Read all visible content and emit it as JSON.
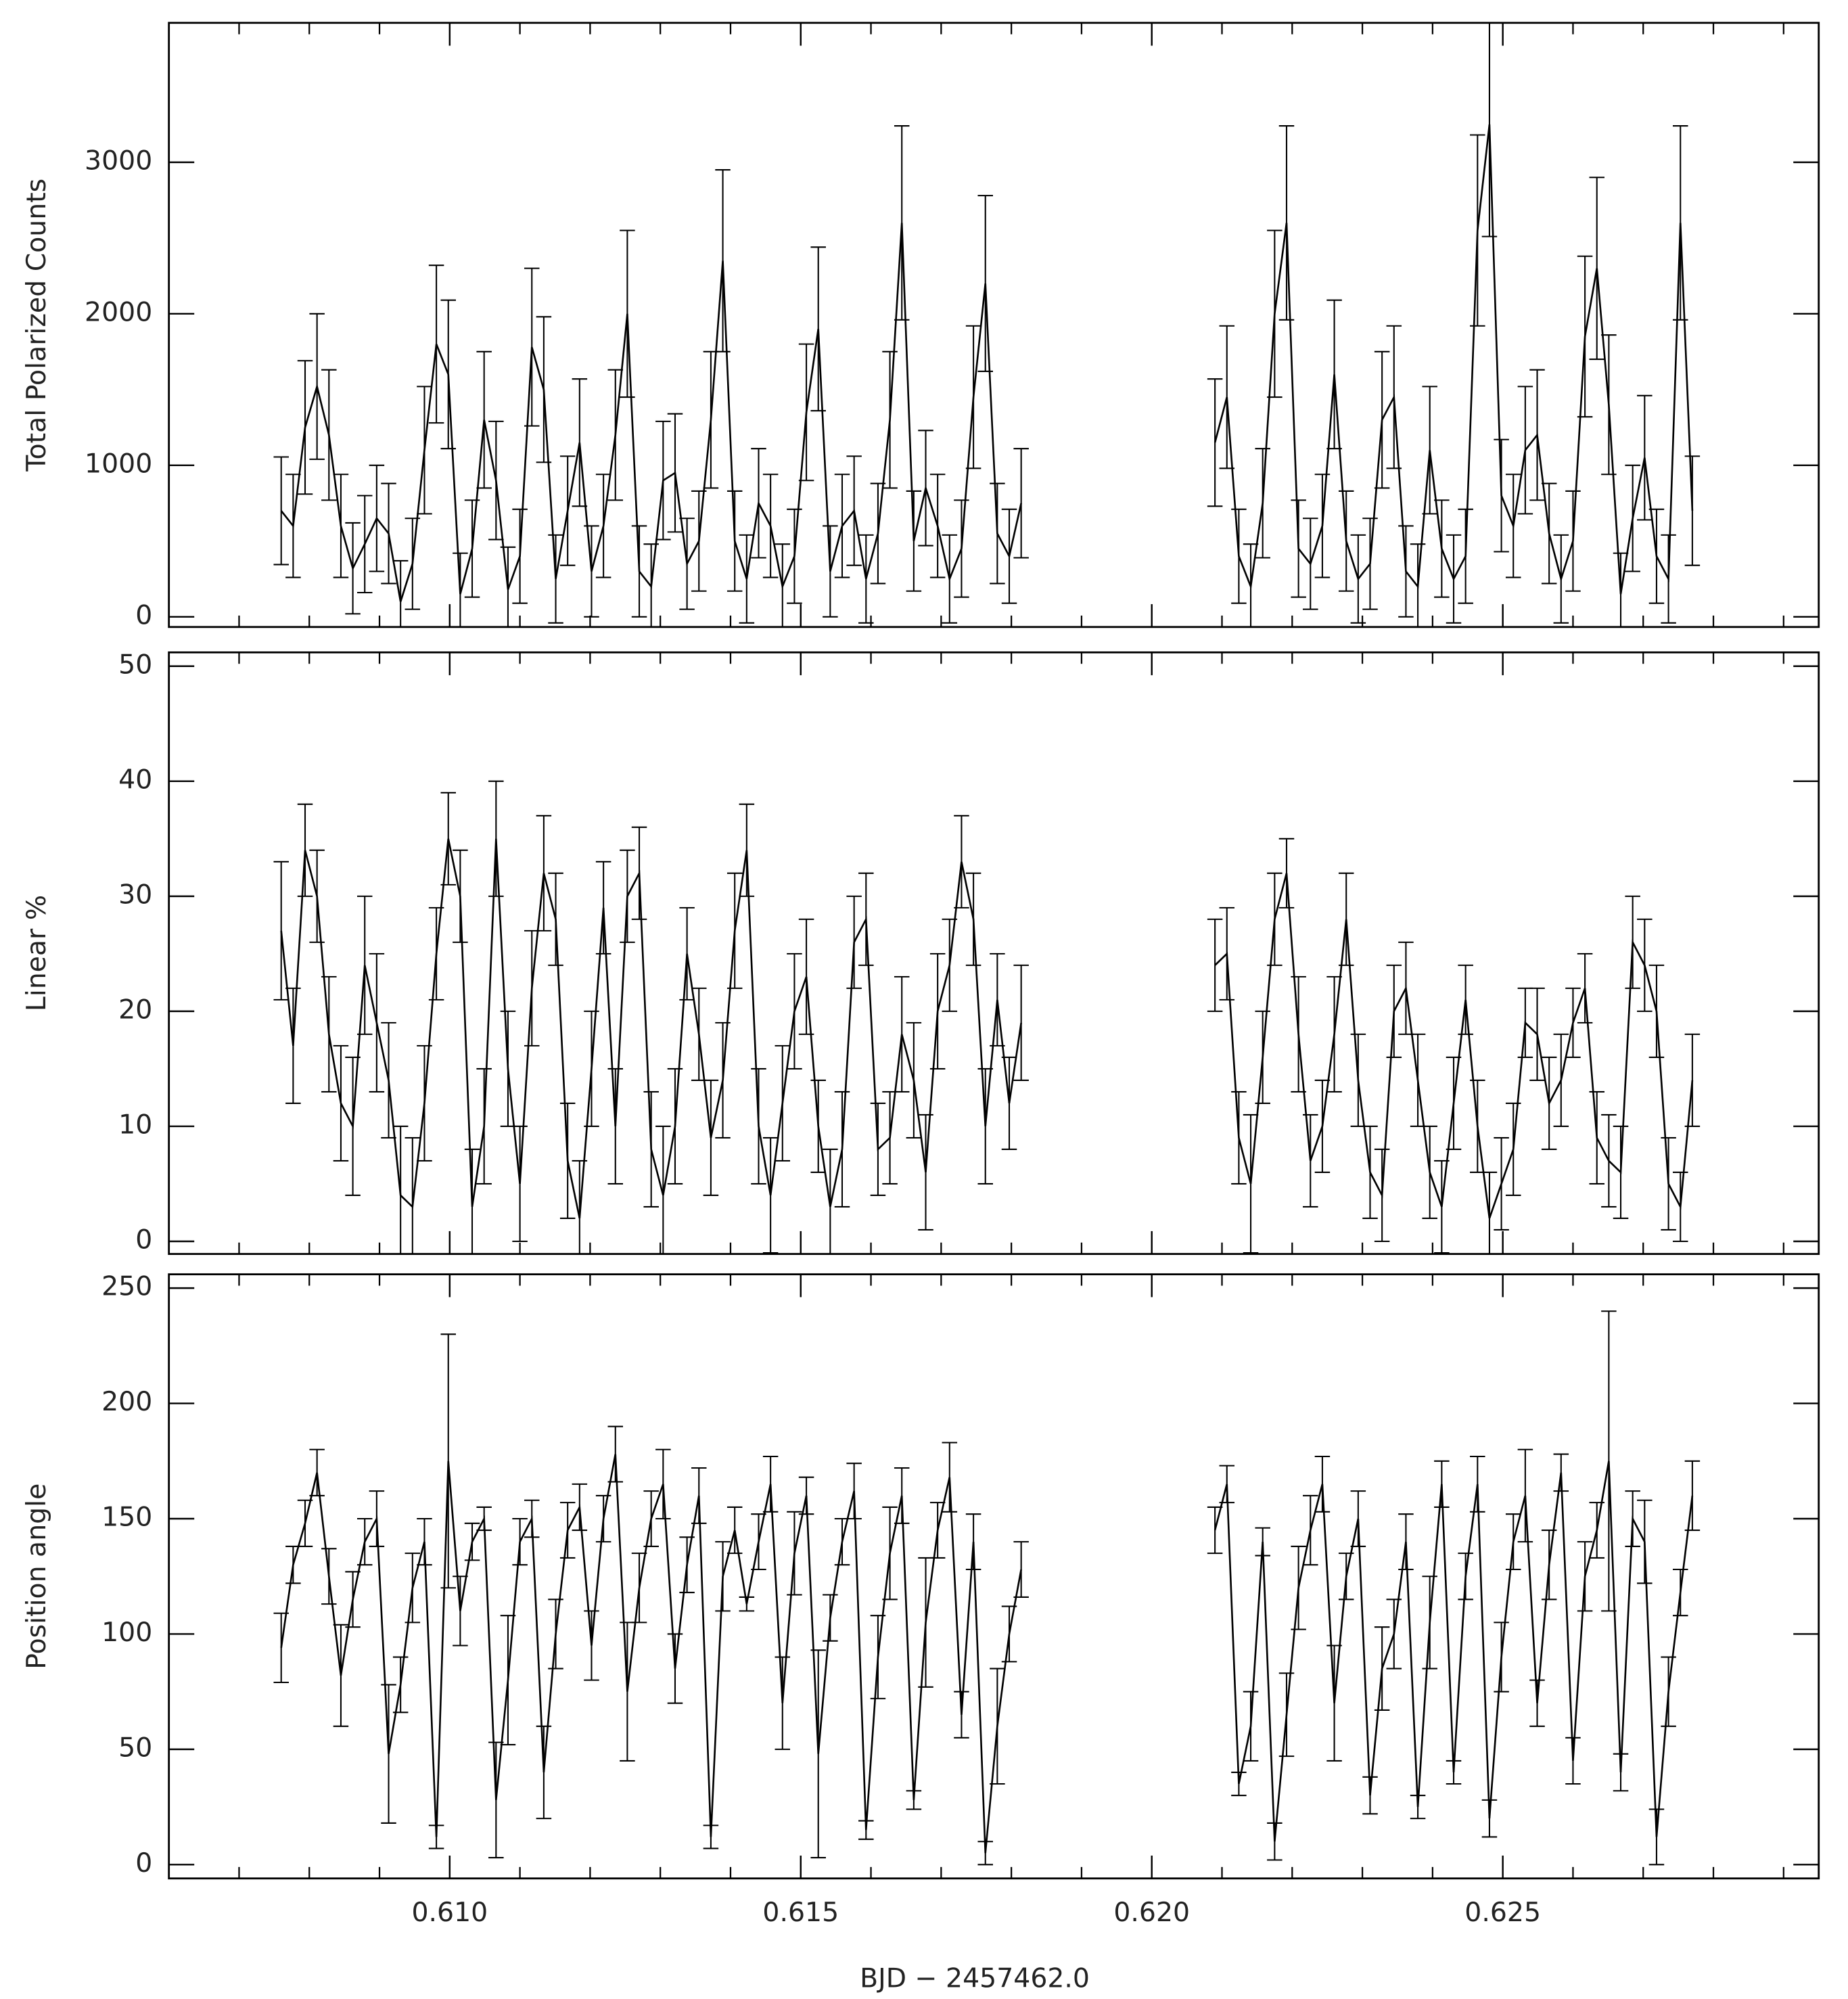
{
  "chart_data": [
    {
      "type": "line",
      "ylabel": "Total Polarized Counts",
      "color": "#000000",
      "xlim": [
        0.606,
        0.6295
      ],
      "x": [
        0.6076,
        0.60777,
        0.60794,
        0.60811,
        0.60828,
        0.60845,
        0.60862,
        0.60879,
        0.60896,
        0.60913,
        0.6093,
        0.60947,
        0.60964,
        0.60981,
        0.60998,
        0.61015,
        0.61032,
        0.61049,
        0.61066,
        0.61083,
        0.611,
        0.61117,
        0.61134,
        0.61151,
        0.61168,
        0.61185,
        0.61202,
        0.61219,
        0.61236,
        0.61253,
        0.6127,
        0.61287,
        0.61304,
        0.61321,
        0.61338,
        0.61355,
        0.61372,
        0.61389,
        0.61406,
        0.61423,
        0.6144,
        0.61457,
        0.61474,
        0.61491,
        0.61508,
        0.61525,
        0.61542,
        0.61559,
        0.61576,
        0.61593,
        0.6161,
        0.61627,
        0.61644,
        0.61661,
        0.61678,
        0.61695,
        0.61712,
        0.61729,
        0.61746,
        0.61763,
        0.6178,
        0.61797,
        0.61814,
        0.6195,
        0.6209,
        0.62107,
        0.62124,
        0.62141,
        0.62158,
        0.62175,
        0.62192,
        0.62209,
        0.62226,
        0.62243,
        0.6226,
        0.62277,
        0.62294,
        0.62311,
        0.62328,
        0.62345,
        0.62362,
        0.62379,
        0.62396,
        0.62413,
        0.6243,
        0.62447,
        0.62464,
        0.62481,
        0.62498,
        0.62515,
        0.62532,
        0.62549,
        0.62566,
        0.62583,
        0.626,
        0.62617,
        0.62634,
        0.62651,
        0.62668,
        0.62685,
        0.62702,
        0.62719,
        0.62736,
        0.62753,
        0.6277
      ],
      "values": [
        700,
        600,
        1250,
        1520,
        1200,
        600,
        320,
        480,
        650,
        550,
        100,
        350,
        1100,
        1800,
        1600,
        150,
        450,
        1300,
        900,
        180,
        400,
        1780,
        1500,
        250,
        700,
        1150,
        300,
        600,
        1200,
        2000,
        300,
        200,
        900,
        950,
        350,
        500,
        1300,
        2350,
        500,
        250,
        750,
        600,
        200,
        400,
        1350,
        1900,
        300,
        600,
        700,
        250,
        550,
        1300,
        2600,
        500,
        850,
        600,
        250,
        450,
        1450,
        2200,
        550,
        400,
        750,
        null,
        1150,
        1450,
        400,
        200,
        750,
        2000,
        2600,
        450,
        350,
        600,
        1600,
        500,
        250,
        350,
        1300,
        1450,
        300,
        200,
        1100,
        450,
        250,
        400,
        2550,
        3250,
        800,
        600,
        1100,
        1200,
        550,
        250,
        500,
        1850,
        2300,
        1400,
        150,
        650,
        1050,
        400,
        250,
        2600,
        700
      ],
      "errors": [
        355,
        340,
        440,
        480,
        430,
        340,
        300,
        320,
        350,
        330,
        270,
        300,
        420,
        520,
        490,
        270,
        320,
        450,
        390,
        280,
        310,
        520,
        480,
        290,
        360,
        420,
        300,
        340,
        430,
        550,
        300,
        280,
        390,
        390,
        300,
        330,
        450,
        600,
        330,
        290,
        360,
        340,
        280,
        310,
        450,
        540,
        300,
        340,
        360,
        290,
        330,
        450,
        640,
        330,
        380,
        340,
        290,
        320,
        470,
        580,
        330,
        310,
        360,
        null,
        420,
        470,
        310,
        280,
        360,
        550,
        640,
        320,
        300,
        340,
        490,
        330,
        290,
        300,
        450,
        470,
        300,
        280,
        420,
        320,
        290,
        310,
        630,
        740,
        370,
        340,
        420,
        430,
        330,
        290,
        330,
        530,
        600,
        460,
        270,
        350,
        410,
        310,
        290,
        640,
        360
      ],
      "ylim": [
        -67,
        3920
      ],
      "yticks": [
        0,
        1000,
        2000,
        3000
      ]
    },
    {
      "type": "line",
      "ylabel": "Linear %",
      "color": "#000000",
      "values": [
        27,
        17,
        34,
        30,
        18,
        12,
        10,
        24,
        19,
        14,
        4,
        3,
        12,
        25,
        35,
        30,
        3,
        10,
        35,
        15,
        5,
        22,
        32,
        28,
        7,
        2,
        15,
        29,
        10,
        30,
        32,
        8,
        4,
        10,
        25,
        18,
        9,
        14,
        27,
        34,
        10,
        4,
        12,
        20,
        23,
        10,
        3,
        8,
        26,
        28,
        8,
        9,
        18,
        14,
        6,
        20,
        24,
        33,
        28,
        10,
        21,
        12,
        19,
        null,
        24,
        25,
        9,
        5,
        16,
        28,
        32,
        18,
        7,
        10,
        18,
        28,
        14,
        6,
        4,
        20,
        22,
        14,
        6,
        3,
        12,
        21,
        10,
        2,
        5,
        8,
        19,
        18,
        12,
        14,
        19,
        22,
        9,
        7,
        6,
        26,
        24,
        20,
        5,
        3,
        14
      ],
      "errors": [
        6,
        5,
        4,
        4,
        5,
        5,
        6,
        6,
        6,
        5,
        6,
        6,
        5,
        4,
        4,
        4,
        5,
        5,
        5,
        5,
        5,
        5,
        5,
        4,
        5,
        5,
        5,
        4,
        5,
        4,
        4,
        5,
        6,
        5,
        4,
        4,
        5,
        5,
        5,
        4,
        5,
        5,
        5,
        5,
        5,
        4,
        5,
        5,
        4,
        4,
        4,
        4,
        5,
        5,
        5,
        5,
        4,
        4,
        4,
        5,
        4,
        4,
        5,
        null,
        4,
        4,
        4,
        6,
        4,
        4,
        3,
        5,
        4,
        4,
        5,
        4,
        4,
        4,
        4,
        4,
        4,
        4,
        4,
        4,
        4,
        3,
        4,
        4,
        4,
        4,
        3,
        4,
        4,
        4,
        3,
        3,
        4,
        4,
        4,
        4,
        4,
        4,
        4,
        3,
        4
      ],
      "ylim": [
        -1.1,
        51.2
      ],
      "yticks": [
        0,
        10,
        20,
        30,
        40,
        50
      ]
    },
    {
      "type": "line",
      "ylabel": "Position angle",
      "xlabel": "BJD − 2457462.0",
      "color": "#000000",
      "values": [
        94,
        130,
        148,
        170,
        125,
        82,
        115,
        140,
        150,
        48,
        78,
        120,
        140,
        12,
        175,
        110,
        140,
        150,
        28,
        80,
        140,
        150,
        40,
        100,
        145,
        155,
        95,
        150,
        178,
        75,
        120,
        150,
        165,
        85,
        130,
        160,
        12,
        125,
        145,
        113,
        140,
        165,
        70,
        135,
        160,
        48,
        107,
        140,
        162,
        15,
        90,
        135,
        160,
        28,
        105,
        145,
        168,
        65,
        140,
        5,
        60,
        100,
        128,
        null,
        145,
        165,
        35,
        60,
        140,
        10,
        65,
        120,
        145,
        165,
        70,
        125,
        150,
        30,
        85,
        100,
        140,
        25,
        105,
        165,
        40,
        125,
        165,
        20,
        90,
        140,
        160,
        70,
        130,
        170,
        45,
        125,
        145,
        175,
        40,
        150,
        140,
        12,
        75,
        118,
        160
      ],
      "errors": [
        15,
        8,
        10,
        10,
        12,
        22,
        12,
        10,
        12,
        30,
        12,
        15,
        10,
        5,
        55,
        15,
        8,
        5,
        25,
        28,
        10,
        8,
        20,
        15,
        12,
        10,
        15,
        10,
        12,
        30,
        15,
        12,
        15,
        15,
        12,
        12,
        5,
        15,
        10,
        3,
        12,
        12,
        20,
        18,
        8,
        45,
        10,
        10,
        12,
        4,
        18,
        20,
        12,
        4,
        28,
        12,
        15,
        10,
        12,
        5,
        25,
        12,
        12,
        null,
        10,
        8,
        5,
        15,
        6,
        8,
        18,
        18,
        15,
        12,
        25,
        10,
        12,
        8,
        18,
        15,
        12,
        5,
        20,
        10,
        5,
        10,
        12,
        8,
        15,
        12,
        20,
        10,
        15,
        8,
        10,
        15,
        12,
        65,
        8,
        12,
        18,
        12,
        15,
        10,
        15
      ],
      "ylim": [
        -6,
        256
      ],
      "yticks": [
        0,
        50,
        100,
        150,
        200,
        250
      ],
      "xticks": [
        {
          "value": 0.61,
          "label": "0.610"
        },
        0.615,
        {
          "value": 0.62,
          "label": "0.620"
        },
        0.625
      ],
      "xminorticks": [
        0.607,
        0.608,
        0.609,
        0.611,
        0.612,
        0.613,
        0.614,
        0.616,
        0.617,
        0.618,
        0.619,
        0.621,
        0.622,
        0.623,
        0.624,
        0.626,
        0.627,
        0.628,
        0.629
      ]
    }
  ]
}
